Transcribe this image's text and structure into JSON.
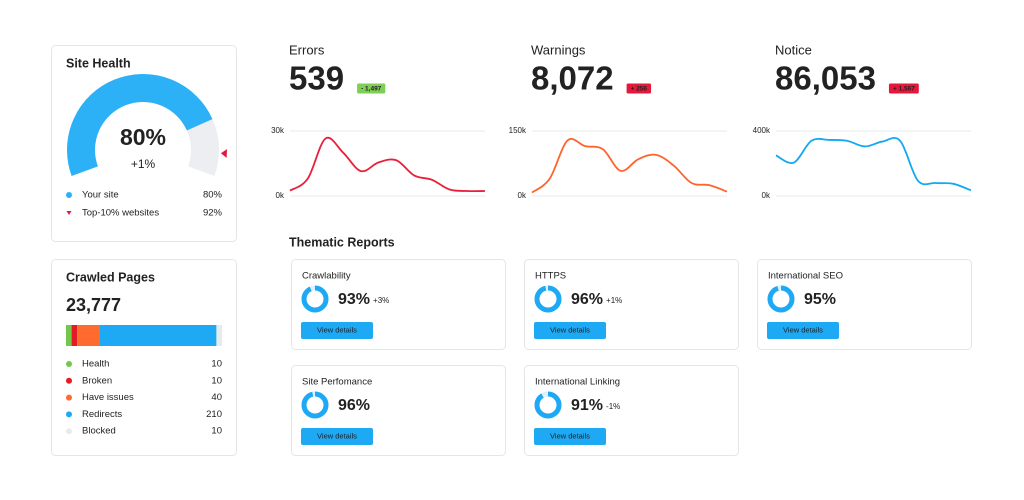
{
  "site_health": {
    "title": "Site Health",
    "score": {
      "value": 80,
      "label": "80%"
    },
    "change": "+1%",
    "change_color": "#5bb53b",
    "track_color": "#eceef1",
    "legend": [
      {
        "name": "Your site",
        "marker": "circle",
        "color": "#2cb0f6",
        "value": {
          "value": 80,
          "label": "80%"
        }
      },
      {
        "name": "Top-10% websites",
        "marker": "triangle",
        "color": "#e5173b",
        "value": {
          "value": 92,
          "label": "92%"
        }
      }
    ]
  },
  "crawled_pages": {
    "title": "Crawled Pages",
    "total": "23,777",
    "segments": [
      {
        "name": "Health",
        "value": 10,
        "color": "#72c84a"
      },
      {
        "name": "Broken",
        "value": 10,
        "color": "#e31b23"
      },
      {
        "name": "Have issues",
        "value": 40,
        "color": "#ff6b2e"
      },
      {
        "name": "Redirects",
        "value": 210,
        "color": "#1ea9f5"
      },
      {
        "name": "Blocked",
        "value": 10,
        "color": "#e8ebee"
      }
    ]
  },
  "metrics": [
    {
      "label": "Errors",
      "value": "539",
      "color": "#e8203a",
      "change": "- 1,497",
      "change_color": "#7fcf57",
      "chart": {
        "type": "line",
        "ylim": [
          0,
          30000
        ],
        "yticks": [
          {
            "value": 0,
            "label": "0k"
          },
          {
            "value": 30000,
            "label": "30k"
          }
        ],
        "values": [
          2500,
          8000,
          26500,
          20000,
          11500,
          15500,
          16500,
          9500,
          7500,
          3000,
          2300,
          2300
        ]
      }
    },
    {
      "label": "Warnings",
      "value": "8,072",
      "color": "#ff642d",
      "change": "+ 256",
      "change_color": "#e5173b",
      "chart": {
        "type": "line",
        "ylim": [
          0,
          150000
        ],
        "yticks": [
          {
            "value": 0,
            "label": "0k"
          },
          {
            "value": 150000,
            "label": "150k"
          }
        ],
        "values": [
          8000,
          40000,
          128000,
          115000,
          108000,
          58000,
          85000,
          95000,
          70000,
          30000,
          25000,
          10000
        ]
      }
    },
    {
      "label": "Notice",
      "value": "86,053",
      "color": "#13a8f0",
      "change": "+ 1,567",
      "change_color": "#e5173b",
      "chart": {
        "type": "line",
        "ylim": [
          0,
          400000
        ],
        "yticks": [
          {
            "value": 0,
            "label": "0k"
          },
          {
            "value": 400000,
            "label": "400k"
          }
        ],
        "values": [
          250000,
          205000,
          340000,
          345000,
          340000,
          305000,
          335000,
          340000,
          95000,
          80000,
          75000,
          35000
        ]
      }
    }
  ],
  "thematic_reports": {
    "title": "Thematic Reports",
    "button_label": "View details",
    "color": "#1ea9f5",
    "track_color": "#dff1fd",
    "cards": [
      {
        "name": "Crawlability",
        "score": {
          "value": 93,
          "label": "93%"
        },
        "change": "+3%",
        "change_color": "#5bb53b"
      },
      {
        "name": "HTTPS",
        "score": {
          "value": 96,
          "label": "96%"
        },
        "change": "+1%",
        "change_color": "#5bb53b"
      },
      {
        "name": "International SEO",
        "score": {
          "value": 95,
          "label": "95%"
        }
      },
      {
        "name": "Site Perfomance",
        "score": {
          "value": 96,
          "label": "96%"
        }
      },
      {
        "name": "International Linking",
        "score": {
          "value": 91,
          "label": "91%"
        },
        "change": "-1%",
        "change_color": "#e5173b"
      }
    ]
  }
}
